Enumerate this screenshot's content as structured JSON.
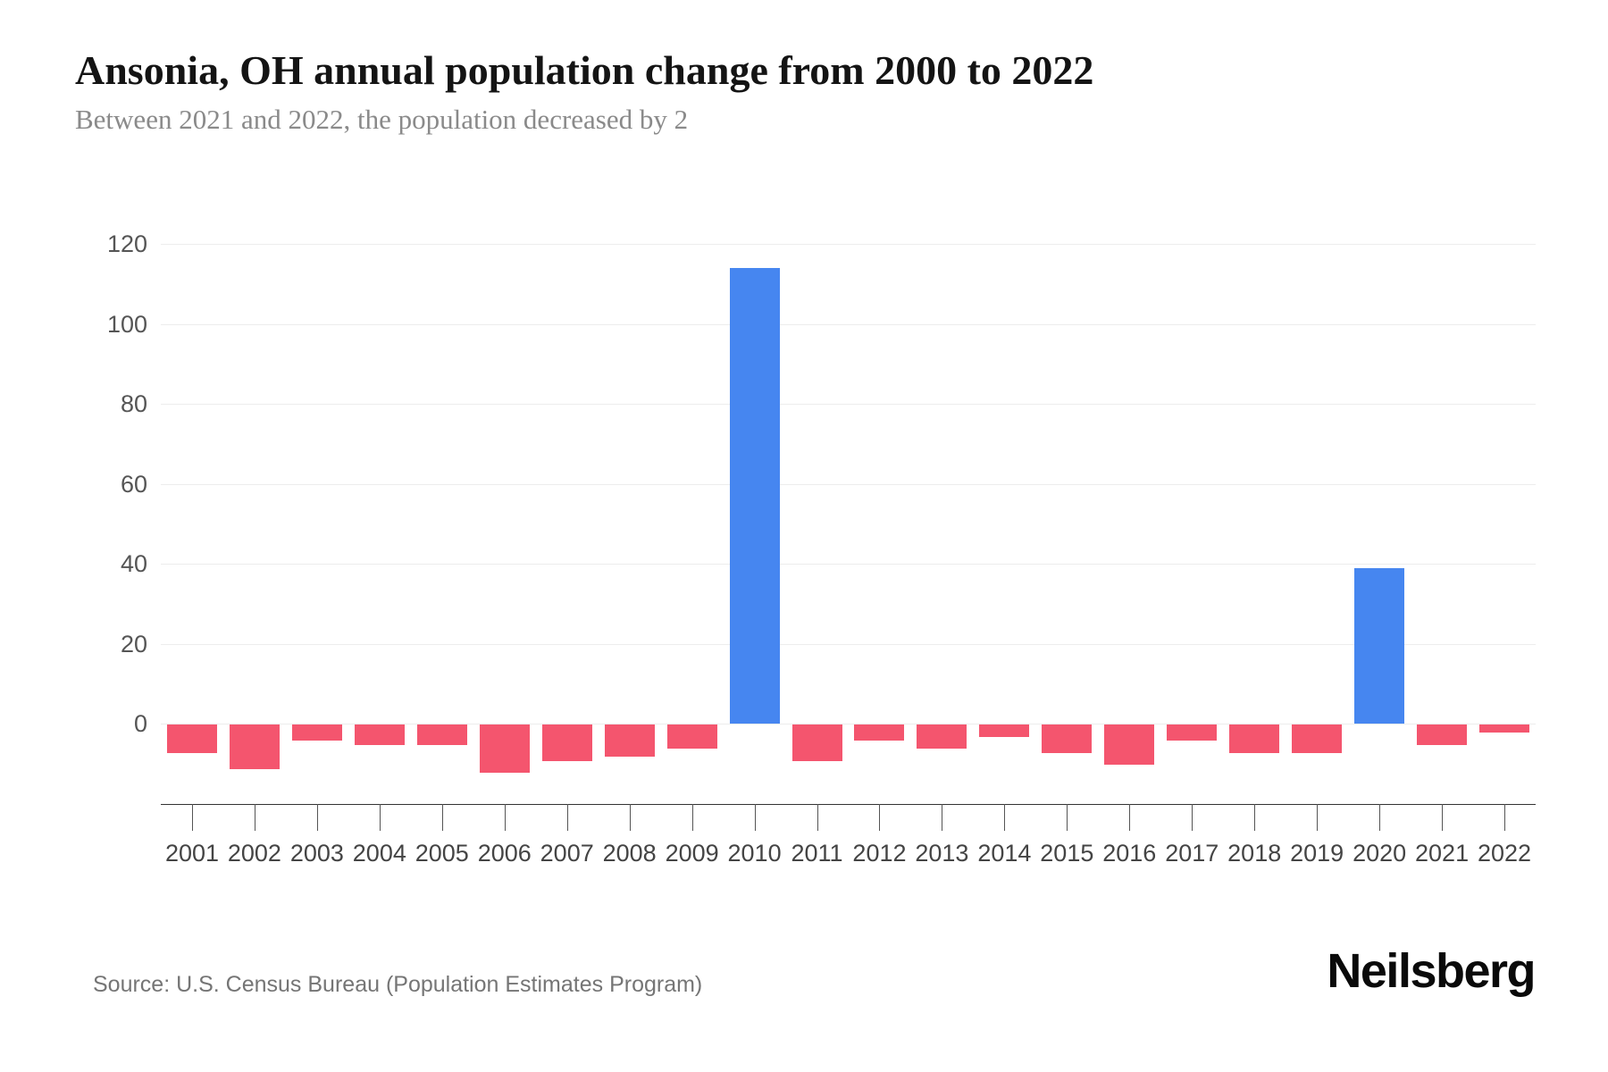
{
  "page": {
    "title": "Ansonia, OH annual population change from 2000 to 2022",
    "subtitle": "Between 2021 and 2022, the population decreased by 2",
    "source": "Source: U.S. Census Bureau (Population Estimates Program)",
    "brand": "Neilsberg"
  },
  "colors": {
    "positive_bar": "#4686F0",
    "negative_bar": "#F4556E",
    "gridline": "#ededed",
    "axis_line": "#333333",
    "y_label": "#555555",
    "x_label": "#444444",
    "title": "#141414",
    "subtitle": "#8a8a8a",
    "source": "#757575"
  },
  "chart_data": {
    "type": "bar",
    "title": "Ansonia, OH annual population change from 2000 to 2022",
    "subtitle": "Between 2021 and 2022, the population decreased by 2",
    "categories": [
      "2001",
      "2002",
      "2003",
      "2004",
      "2005",
      "2006",
      "2007",
      "2008",
      "2009",
      "2010",
      "2011",
      "2012",
      "2013",
      "2014",
      "2015",
      "2016",
      "2017",
      "2018",
      "2019",
      "2020",
      "2021",
      "2022"
    ],
    "values": [
      -7,
      -11,
      -4,
      -5,
      -5,
      -12,
      -9,
      -8,
      -6,
      114,
      -9,
      -4,
      -6,
      -3,
      -7,
      -10,
      -4,
      -7,
      -7,
      39,
      -5,
      -2
    ],
    "xlabel": "",
    "ylabel": "",
    "yticks": [
      0,
      20,
      40,
      60,
      80,
      100,
      120
    ],
    "ylim": [
      -20,
      120
    ],
    "grid": true,
    "legend": "none",
    "bar_color_positive": "#4686F0",
    "bar_color_negative": "#F4556E"
  }
}
